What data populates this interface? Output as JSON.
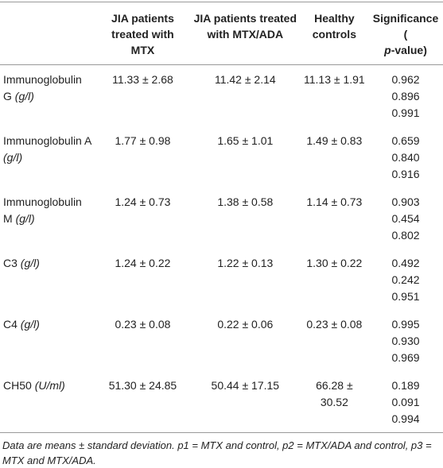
{
  "table": {
    "header": [
      "JIA patients treated with MTX",
      "JIA patients treated with MTX/ADA",
      "Healthy controls"
    ],
    "significance": [
      "Significance (",
      "p",
      "-value)"
    ],
    "rows": [
      {
        "name": "Immunoglobulin G",
        "unit": "(g/l)",
        "values": [
          "11.33 ± 2.68",
          "11.42 ± 2.14",
          "11.13 ± 1.91"
        ],
        "p": [
          "0.962",
          "0.896",
          "0.991"
        ]
      },
      {
        "name": "Immunoglobulin A",
        "unit": "(g/l)",
        "values": [
          "1.77 ± 0.98",
          "1.65 ± 1.01",
          "1.49 ± 0.83"
        ],
        "p": [
          "0.659",
          "0.840",
          "0.916"
        ]
      },
      {
        "name": "Immunoglobulin M",
        "unit": "(g/l)",
        "values": [
          "1.24 ± 0.73",
          "1.38 ± 0.58",
          "1.14 ± 0.73"
        ],
        "p": [
          "0.903",
          "0.454",
          "0.802"
        ]
      },
      {
        "name": "C3",
        "unit": "(g/l)",
        "values": [
          "1.24 ± 0.22",
          "1.22 ± 0.13",
          "1.30 ± 0.22"
        ],
        "p": [
          "0.492",
          "0.242",
          "0.951"
        ]
      },
      {
        "name": "C4",
        "unit": "(g/l)",
        "values": [
          "0.23 ± 0.08",
          "0.22 ± 0.06",
          "0.23 ± 0.08"
        ],
        "p": [
          "0.995",
          "0.930",
          "0.969"
        ]
      },
      {
        "name": "CH50",
        "unit": "(U/ml)",
        "values": [
          "51.30 ± 24.85",
          "50.44 ± 17.15",
          "66.28 ± 30.52"
        ],
        "p": [
          "0.189",
          "0.091",
          "0.994"
        ]
      }
    ],
    "footnote": "Data are means ± standard deviation. p1 = MTX and control, p2 = MTX/ADA and control, p3 = MTX and MTX/ADA."
  }
}
